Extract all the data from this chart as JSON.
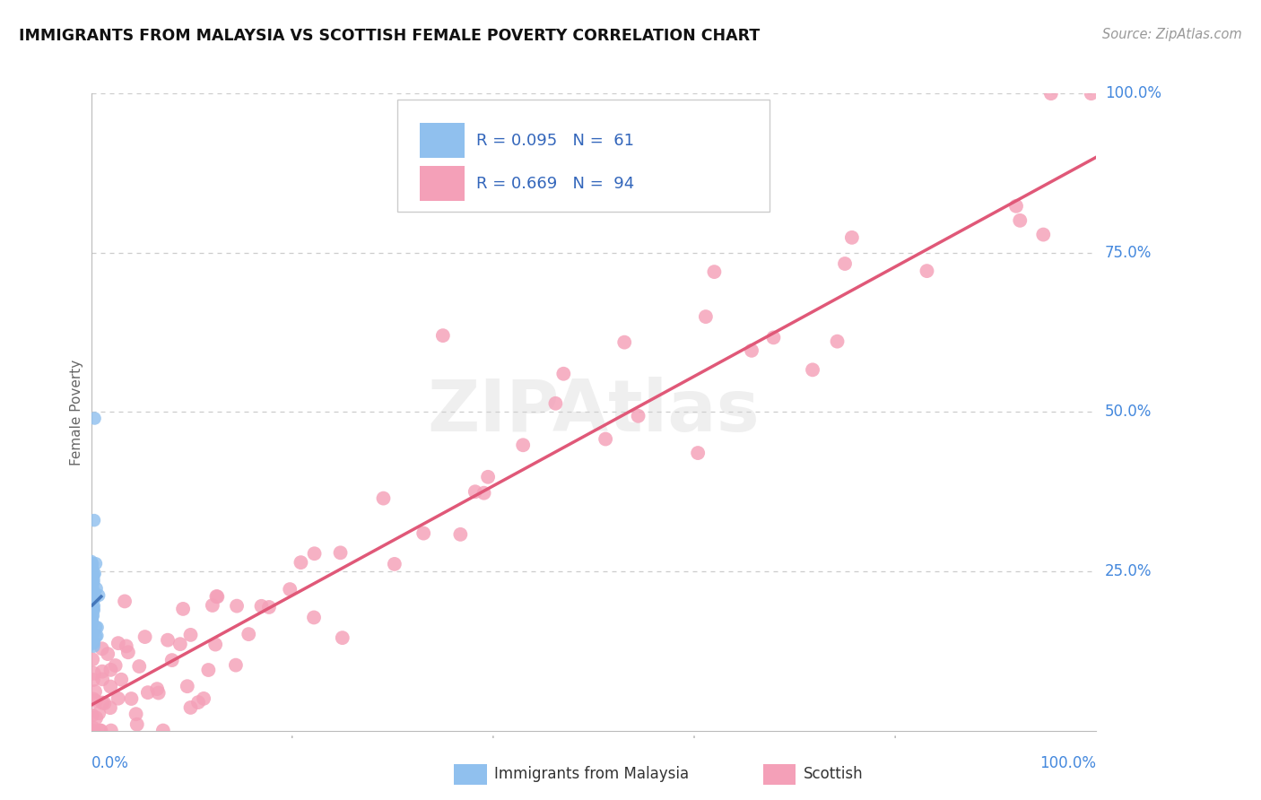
{
  "title": "IMMIGRANTS FROM MALAYSIA VS SCOTTISH FEMALE POVERTY CORRELATION CHART",
  "source": "Source: ZipAtlas.com",
  "ylabel_label": "Female Poverty",
  "xlim": [
    0.0,
    1.0
  ],
  "ylim": [
    0.0,
    1.0
  ],
  "ytick_right_labels": [
    "25.0%",
    "50.0%",
    "75.0%",
    "100.0%"
  ],
  "ytick_right_values": [
    0.25,
    0.5,
    0.75,
    1.0
  ],
  "xtick_labels": [
    "0.0%",
    "100.0%"
  ],
  "xtick_values": [
    0.0,
    1.0
  ],
  "grid_color": "#cccccc",
  "background_color": "#ffffff",
  "blue_color": "#90C0EE",
  "pink_color": "#F4A0B8",
  "blue_line_color": "#4477BB",
  "pink_line_color": "#E05878",
  "title_color": "#111111",
  "axis_label_color": "#666666",
  "right_tick_color": "#4488DD",
  "bottom_tick_color": "#4488DD",
  "legend_blue_R": "R = 0.095",
  "legend_blue_N": "N =  61",
  "legend_pink_R": "R = 0.669",
  "legend_pink_N": "N =  94",
  "legend_blue_label": "Immigrants from Malaysia",
  "legend_pink_label": "Scottish",
  "blue_line_x": [
    0.0,
    0.013
  ],
  "blue_line_y": [
    0.195,
    0.215
  ],
  "pink_line_x": [
    0.0,
    1.0
  ],
  "pink_line_y": [
    0.04,
    0.9
  ]
}
